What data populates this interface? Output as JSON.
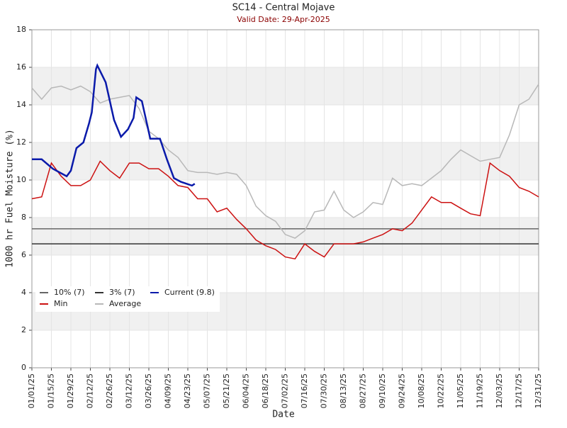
{
  "chart_data": {
    "type": "line",
    "title": "SC14 - Central Mojave",
    "subtitle": "Valid Date: 29-Apr-2025",
    "xlabel": "Date",
    "ylabel": "1000 hr Fuel Moisture (%)",
    "xlim": [
      "01/01/25",
      "12/31/25"
    ],
    "xticks": [
      "01/01/25",
      "01/15/25",
      "01/29/25",
      "02/12/25",
      "02/26/25",
      "03/12/25",
      "03/26/25",
      "04/09/25",
      "04/23/25",
      "05/07/25",
      "05/21/25",
      "06/04/25",
      "06/18/25",
      "07/02/25",
      "07/16/25",
      "07/30/25",
      "08/13/25",
      "08/27/25",
      "09/10/25",
      "09/24/25",
      "10/08/25",
      "10/22/25",
      "11/05/25",
      "11/19/25",
      "12/03/25",
      "12/17/25",
      "12/31/25"
    ],
    "ylim": [
      0,
      18
    ],
    "yticks": [
      0,
      2,
      4,
      6,
      8,
      10,
      12,
      14,
      16,
      18
    ],
    "grid": true,
    "reference_lines": [
      {
        "name": "10% (7)",
        "color": "#666666",
        "value": 7.4
      },
      {
        "name": "3% (7)",
        "color": "#333333",
        "value": 6.6
      }
    ],
    "series": [
      {
        "name": "Current (9.8)",
        "color": "#0a1aaa",
        "x": [
          "01/01/25",
          "01/08/25",
          "01/16/25",
          "01/26/25",
          "01/29/25",
          "02/02/25",
          "02/07/25",
          "02/11/25",
          "02/13/25",
          "02/16/25",
          "02/17/25",
          "02/23/25",
          "03/01/25",
          "03/06/25",
          "03/11/25",
          "03/15/25",
          "03/17/25",
          "03/21/25",
          "03/24/25",
          "03/27/25",
          "04/03/25",
          "04/08/25",
          "04/13/25",
          "04/18/25",
          "04/26/25",
          "04/28/25"
        ],
        "values": [
          11.1,
          11.1,
          10.6,
          10.2,
          10.5,
          11.7,
          12.0,
          13.0,
          13.6,
          15.9,
          16.1,
          15.2,
          13.2,
          12.3,
          12.7,
          13.3,
          14.4,
          14.2,
          13.2,
          12.2,
          12.2,
          11.1,
          10.1,
          9.9,
          9.7,
          9.8
        ]
      },
      {
        "name": "Min",
        "color": "#cc1111",
        "x": [
          "01/01/25",
          "01/08/25",
          "01/15/25",
          "01/22/25",
          "01/29/25",
          "02/05/25",
          "02/12/25",
          "02/19/25",
          "02/26/25",
          "03/05/25",
          "03/12/25",
          "03/19/25",
          "03/26/25",
          "04/02/25",
          "04/09/25",
          "04/16/25",
          "04/23/25",
          "04/30/25",
          "05/07/25",
          "05/14/25",
          "05/21/25",
          "05/28/25",
          "06/04/25",
          "06/11/25",
          "06/18/25",
          "06/25/25",
          "07/02/25",
          "07/09/25",
          "07/16/25",
          "07/23/25",
          "07/30/25",
          "08/06/25",
          "08/13/25",
          "08/20/25",
          "08/27/25",
          "09/03/25",
          "09/10/25",
          "09/17/25",
          "09/24/25",
          "10/01/25",
          "10/08/25",
          "10/15/25",
          "10/22/25",
          "10/29/25",
          "11/05/25",
          "11/12/25",
          "11/19/25",
          "11/26/25",
          "12/03/25",
          "12/10/25",
          "12/17/25",
          "12/24/25",
          "12/31/25"
        ],
        "values": [
          9.0,
          9.1,
          10.9,
          10.2,
          9.7,
          9.7,
          10.0,
          11.0,
          10.5,
          10.1,
          10.9,
          10.9,
          10.6,
          10.6,
          10.2,
          9.7,
          9.6,
          9.0,
          9.0,
          8.3,
          8.5,
          7.9,
          7.4,
          6.8,
          6.5,
          6.3,
          5.9,
          5.8,
          6.6,
          6.2,
          5.9,
          6.6,
          6.6,
          6.6,
          6.7,
          6.9,
          7.1,
          7.4,
          7.3,
          7.7,
          8.4,
          9.1,
          8.8,
          8.8,
          8.5,
          8.2,
          8.1,
          10.9,
          10.5,
          10.2,
          9.6,
          9.4,
          9.1
        ]
      },
      {
        "name": "Average",
        "color": "#b8b8b8",
        "x": [
          "01/01/25",
          "01/08/25",
          "01/15/25",
          "01/22/25",
          "01/29/25",
          "02/05/25",
          "02/12/25",
          "02/19/25",
          "02/26/25",
          "03/05/25",
          "03/12/25",
          "03/19/25",
          "03/26/25",
          "04/02/25",
          "04/09/25",
          "04/16/25",
          "04/23/25",
          "04/30/25",
          "05/07/25",
          "05/14/25",
          "05/21/25",
          "05/28/25",
          "06/04/25",
          "06/11/25",
          "06/18/25",
          "06/25/25",
          "07/02/25",
          "07/09/25",
          "07/16/25",
          "07/23/25",
          "07/30/25",
          "08/06/25",
          "08/13/25",
          "08/20/25",
          "08/27/25",
          "09/03/25",
          "09/10/25",
          "09/17/25",
          "09/24/25",
          "10/01/25",
          "10/08/25",
          "10/15/25",
          "10/22/25",
          "10/29/25",
          "11/05/25",
          "11/12/25",
          "11/19/25",
          "11/26/25",
          "12/03/25",
          "12/10/25",
          "12/17/25",
          "12/24/25",
          "12/31/25"
        ],
        "values": [
          14.9,
          14.3,
          14.9,
          15.0,
          14.8,
          15.0,
          14.7,
          14.1,
          14.3,
          14.4,
          14.5,
          13.8,
          12.6,
          12.2,
          11.6,
          11.2,
          10.5,
          10.4,
          10.4,
          10.3,
          10.4,
          10.3,
          9.7,
          8.6,
          8.1,
          7.8,
          7.1,
          6.9,
          7.3,
          8.3,
          8.4,
          9.4,
          8.4,
          8.0,
          8.3,
          8.8,
          8.7,
          10.1,
          9.7,
          9.8,
          9.7,
          10.1,
          10.5,
          11.1,
          11.6,
          11.3,
          11.0,
          11.1,
          11.2,
          12.4,
          14.0,
          14.3,
          15.1
        ]
      }
    ]
  }
}
